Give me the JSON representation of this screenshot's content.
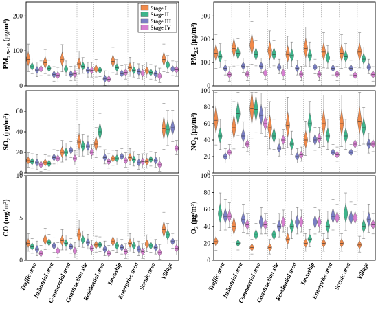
{
  "categories": [
    "Traffic area",
    "Industrial area",
    "Commercial area",
    "Construction site",
    "Residential area",
    "Township",
    "Enterprise area",
    "Scenic area",
    "Village"
  ],
  "stages": [
    {
      "name": "Stage I",
      "color": "#F08A4B"
    },
    {
      "name": "Stage II",
      "color": "#3DB58B"
    },
    {
      "name": "Stage III",
      "color": "#7A7FC4"
    },
    {
      "name": "Stage IV",
      "color": "#D67FD0"
    }
  ],
  "panels": [
    {
      "label": "PM2.5-10 (μg/m³)",
      "label_main": "PM",
      "label_sub": "2.5−10",
      "label_unit": " (μg/m³)",
      "ylim": [
        0,
        240
      ],
      "ticks": [
        0,
        100,
        200
      ]
    },
    {
      "label": "PM2.5 (μg/m³)",
      "label_main": "PM",
      "label_sub": "2.5",
      "label_unit": " (μg/m³)",
      "ylim": [
        0,
        360
      ],
      "ticks": [
        0,
        100,
        200,
        300
      ]
    },
    {
      "label": "SO2 (μg/m³)",
      "label_main": "SO",
      "label_sub": "2",
      "label_unit": " (μg/m³)",
      "ylim": [
        0,
        80
      ],
      "ticks": [
        0,
        20,
        40,
        60
      ]
    },
    {
      "label": "NO2 (μg/m³)",
      "label_main": "NO",
      "label_sub": "2",
      "label_unit": " (μg/m³)",
      "ylim": [
        0,
        100
      ],
      "ticks": [
        0,
        20,
        40,
        60,
        80,
        100
      ]
    },
    {
      "label": "CO (mg/m³)",
      "label_main": "CO",
      "label_sub": "",
      "label_unit": " (mg/m³)",
      "ylim": [
        0,
        10
      ],
      "ticks": [
        0,
        5,
        10
      ]
    },
    {
      "label": "O3 (μg/m³)",
      "label_main": "O",
      "label_sub": "3",
      "label_unit": " (μg/m³)",
      "ylim": [
        0,
        100
      ],
      "ticks": [
        0,
        20,
        40,
        60,
        80,
        100
      ]
    }
  ],
  "chart_data": [
    {
      "type": "violin",
      "ylabel": "PM2.5-10 (μg/m³)",
      "ylim": [
        0,
        240
      ],
      "categories": [
        "Traffic area",
        "Industrial area",
        "Commercial area",
        "Construction site",
        "Residential area",
        "Township",
        "Enterprise area",
        "Scenic area",
        "Village"
      ],
      "series": [
        {
          "name": "Stage I",
          "values": [
            76,
            66,
            75,
            63,
            48,
            70,
            52,
            43,
            76
          ]
        },
        {
          "name": "Stage II",
          "values": [
            55,
            50,
            48,
            56,
            45,
            52,
            44,
            38,
            60
          ]
        },
        {
          "name": "Stage III",
          "values": [
            45,
            32,
            33,
            44,
            20,
            35,
            40,
            34,
            48
          ]
        },
        {
          "name": "Stage IV",
          "values": [
            48,
            30,
            34,
            44,
            19,
            38,
            36,
            28,
            46
          ]
        }
      ]
    },
    {
      "type": "violin",
      "ylabel": "PM2.5 (μg/m³)",
      "ylim": [
        0,
        360
      ],
      "categories": [
        "Traffic area",
        "Industrial area",
        "Commercial area",
        "Construction site",
        "Residential area",
        "Township",
        "Enterprise area",
        "Scenic area",
        "Village"
      ],
      "series": [
        {
          "name": "Stage I",
          "values": [
            140,
            160,
            175,
            150,
            135,
            160,
            145,
            140,
            145
          ]
        },
        {
          "name": "Stage II",
          "values": [
            125,
            140,
            135,
            135,
            130,
            130,
            120,
            125,
            115
          ]
        },
        {
          "name": "Stage III",
          "values": [
            75,
            85,
            85,
            80,
            75,
            80,
            75,
            75,
            80
          ]
        },
        {
          "name": "Stage IV",
          "values": [
            48,
            50,
            55,
            55,
            50,
            50,
            50,
            45,
            48
          ]
        }
      ]
    },
    {
      "type": "violin",
      "ylabel": "SO2 (μg/m³)",
      "ylim": [
        0,
        80
      ],
      "categories": [
        "Traffic area",
        "Industrial area",
        "Commercial area",
        "Construction site",
        "Residential area",
        "Township",
        "Enterprise area",
        "Scenic area",
        "Village"
      ],
      "series": [
        {
          "name": "Stage I",
          "values": [
            12,
            10,
            20,
            30,
            28,
            14,
            15,
            11,
            43
          ]
        },
        {
          "name": "Stage II",
          "values": [
            11,
            9,
            20,
            26,
            40,
            14,
            13,
            13,
            42
          ]
        },
        {
          "name": "Stage III",
          "values": [
            10,
            15,
            22,
            26,
            15,
            16,
            10,
            12,
            44
          ]
        },
        {
          "name": "Stage IV",
          "values": [
            8,
            14,
            14,
            20,
            11,
            12,
            11,
            8,
            24
          ]
        }
      ]
    },
    {
      "type": "violin",
      "ylabel": "NO2 (μg/m³)",
      "ylim": [
        0,
        100
      ],
      "categories": [
        "Traffic area",
        "Industrial area",
        "Commercial area",
        "Construction site",
        "Residential area",
        "Township",
        "Enterprise area",
        "Scenic area",
        "Village"
      ],
      "series": [
        {
          "name": "Stage I",
          "values": [
            64,
            55,
            78,
            55,
            58,
            40,
            60,
            60,
            63
          ]
        },
        {
          "name": "Stage II",
          "values": [
            45,
            72,
            77,
            45,
            35,
            60,
            45,
            45,
            55
          ]
        },
        {
          "name": "Stage III",
          "values": [
            20,
            45,
            70,
            30,
            20,
            40,
            25,
            25,
            35
          ]
        },
        {
          "name": "Stage IV",
          "values": [
            25,
            35,
            60,
            40,
            22,
            42,
            22,
            35,
            35
          ]
        }
      ]
    },
    {
      "type": "violin",
      "ylabel": "CO (mg/m³)",
      "ylim": [
        0,
        10
      ],
      "categories": [
        "Traffic area",
        "Industrial area",
        "Commercial area",
        "Construction site",
        "Residential area",
        "Township",
        "Enterprise area",
        "Scenic area",
        "Village"
      ],
      "series": [
        {
          "name": "Stage I",
          "values": [
            2.0,
            2.4,
            2.3,
            3.0,
            1.8,
            2.2,
            2.0,
            1.9,
            3.6
          ]
        },
        {
          "name": "Stage II",
          "values": [
            1.6,
            2.1,
            2.0,
            2.4,
            1.8,
            1.7,
            1.7,
            1.7,
            3.0
          ]
        },
        {
          "name": "Stage III",
          "values": [
            1.3,
            1.7,
            1.6,
            2.1,
            1.3,
            1.5,
            1.3,
            1.5,
            2.2
          ]
        },
        {
          "name": "Stage IV",
          "values": [
            0.8,
            1.1,
            1.1,
            1.4,
            0.8,
            1.0,
            1.0,
            0.9,
            1.4
          ]
        }
      ]
    },
    {
      "type": "violin",
      "ylabel": "O3 (μg/m³)",
      "ylim": [
        0,
        100
      ],
      "categories": [
        "Traffic area",
        "Industrial area",
        "Commercial area",
        "Construction site",
        "Residential area",
        "Township",
        "Enterprise area",
        "Scenic area",
        "Village"
      ],
      "series": [
        {
          "name": "Stage I",
          "values": [
            22,
            40,
            15,
            15,
            25,
            20,
            20,
            20,
            18
          ]
        },
        {
          "name": "Stage II",
          "values": [
            55,
            20,
            30,
            30,
            40,
            25,
            40,
            55,
            40
          ]
        },
        {
          "name": "Stage III",
          "values": [
            52,
            48,
            45,
            40,
            45,
            45,
            52,
            50,
            48
          ]
        },
        {
          "name": "Stage IV",
          "values": [
            52,
            42,
            42,
            45,
            45,
            45,
            50,
            50,
            42
          ]
        }
      ]
    }
  ]
}
